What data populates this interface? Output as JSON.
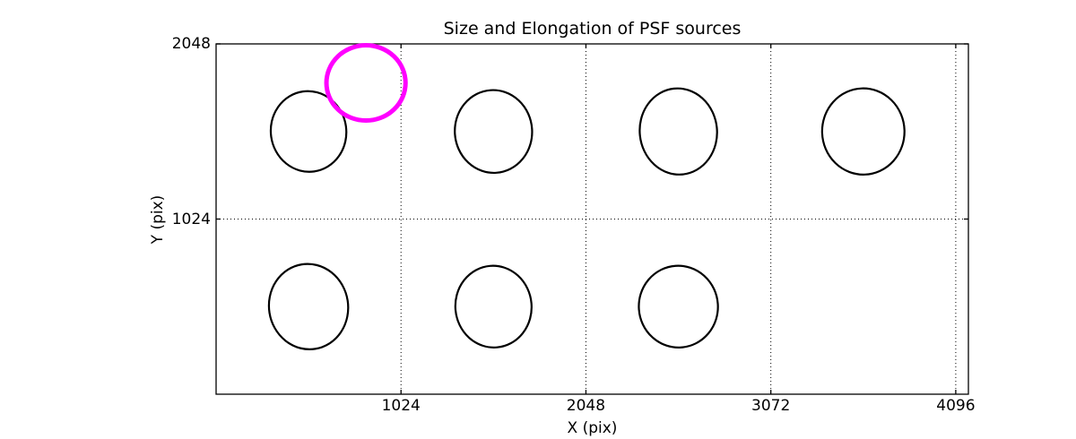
{
  "chart_data": {
    "type": "scatter",
    "title": "Size and Elongation of PSF sources",
    "xlabel": "X (pix)",
    "ylabel": "Y (pix)",
    "xlim": [
      0,
      4166
    ],
    "ylim": [
      0,
      2048
    ],
    "x_ticks": [
      {
        "value": 1024,
        "label": "1024"
      },
      {
        "value": 2048,
        "label": "2048"
      },
      {
        "value": 3072,
        "label": "3072"
      },
      {
        "value": 4096,
        "label": "4096"
      }
    ],
    "y_ticks": [
      {
        "value": 1024,
        "label": "1024"
      },
      {
        "value": 2048,
        "label": "2048"
      }
    ],
    "grid": {
      "linestyle": "dotted",
      "color": "#000000",
      "x_values": [
        1024,
        2048,
        3072,
        4096
      ],
      "y_values": [
        1024
      ]
    },
    "legend": "none",
    "axes_color": "#000000",
    "background_color": "#ffffff",
    "highlight_color": "#ff00ff",
    "ellipses": [
      {
        "x": 512,
        "y": 1536,
        "semi_x": 209,
        "semi_y": 236,
        "angle_deg": -8,
        "color": "#000000",
        "line_width": 2.2
      },
      {
        "x": 1536,
        "y": 1536,
        "semi_x": 214,
        "semi_y": 242,
        "angle_deg": -4,
        "color": "#000000",
        "line_width": 2.2
      },
      {
        "x": 2560,
        "y": 1536,
        "semi_x": 214,
        "semi_y": 252,
        "angle_deg": -6,
        "color": "#000000",
        "line_width": 2.2
      },
      {
        "x": 3584,
        "y": 1536,
        "semi_x": 228,
        "semi_y": 252,
        "angle_deg": -2,
        "color": "#000000",
        "line_width": 2.2
      },
      {
        "x": 512,
        "y": 512,
        "semi_x": 219,
        "semi_y": 250,
        "angle_deg": -9,
        "color": "#000000",
        "line_width": 2.2
      },
      {
        "x": 1536,
        "y": 512,
        "semi_x": 211,
        "semi_y": 239,
        "angle_deg": -5,
        "color": "#000000",
        "line_width": 2.2
      },
      {
        "x": 2560,
        "y": 512,
        "semi_x": 219,
        "semi_y": 239,
        "angle_deg": -4,
        "color": "#000000",
        "line_width": 2.2
      },
      {
        "x": 830,
        "y": 1820,
        "semi_x": 219,
        "semi_y": 220,
        "angle_deg": 0,
        "color": "#ff00ff",
        "line_width": 5
      }
    ]
  }
}
